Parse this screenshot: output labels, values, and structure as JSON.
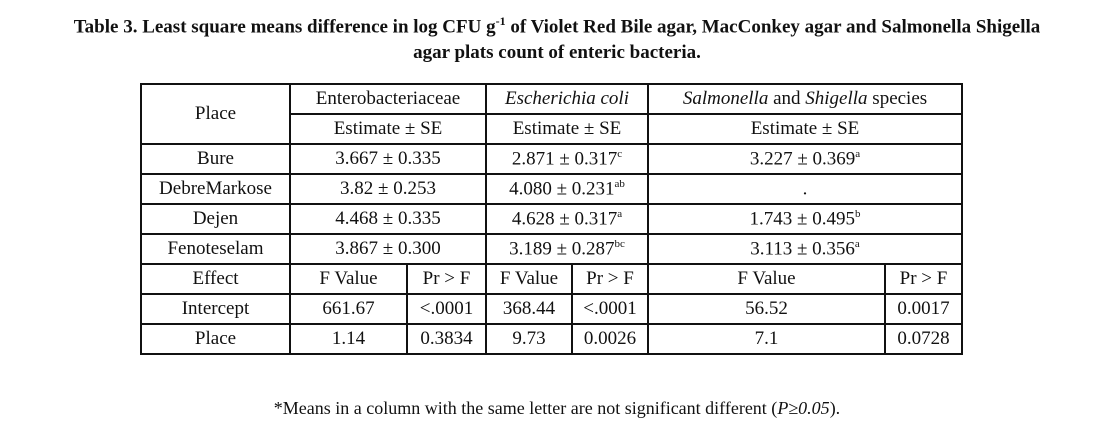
{
  "caption": {
    "line1_pre": "Table 3. Least square means difference in log CFU g",
    "line1_sup": "-1",
    "line1_post": " of Violet Red Bile agar, MacConkey agar and Salmonella Shigella",
    "line2": "agar plats count of enteric bacteria."
  },
  "headers": {
    "place": "Place",
    "group1": "Enterobacteriaceae",
    "group2": "Escherichia coli",
    "group3_a": "Salmonella",
    "group3_and": " and ",
    "group3_b": "Shigella",
    "group3_c": " species",
    "estimate": "Estimate ± SE"
  },
  "rows": [
    {
      "place": "Bure",
      "c1": "3.667 ± 0.335",
      "c2": "2.871 ± 0.317",
      "c2sup": "c",
      "c3": "3.227 ± 0.369",
      "c3sup": "a"
    },
    {
      "place": "DebreMarkose",
      "c1": "3.82 ± 0.253",
      "c2": "4.080 ± 0.231",
      "c2sup": "ab",
      "c3": ".",
      "c3sup": ""
    },
    {
      "place": "Dejen",
      "c1": "4.468 ± 0.335",
      "c2": "4.628 ± 0.317",
      "c2sup": "a",
      "c3": "1.743 ± 0.495",
      "c3sup": "b"
    },
    {
      "place": "Fenoteselam",
      "c1": "3.867 ± 0.300",
      "c2": "3.189 ± 0.287",
      "c2sup": "bc",
      "c3": "3.113 ± 0.356",
      "c3sup": "a"
    }
  ],
  "effect_header": {
    "effect": "Effect",
    "fvalue": "F Value",
    "prf": "Pr > F"
  },
  "effects": [
    {
      "name": "Intercept",
      "f1": "661.67",
      "p1": "<.0001",
      "f2": "368.44",
      "p2": "<.0001",
      "f3": "56.52",
      "p3": "0.0017"
    },
    {
      "name": "Place",
      "f1": "1.14",
      "p1": "0.3834",
      "f2": "9.73",
      "p2": "0.0026",
      "f3": "7.1",
      "p3": "0.0728"
    }
  ],
  "footnote": {
    "text": "*Means in a column with the same letter are not significant different (",
    "p": "P≥0.05",
    "end": ")."
  }
}
